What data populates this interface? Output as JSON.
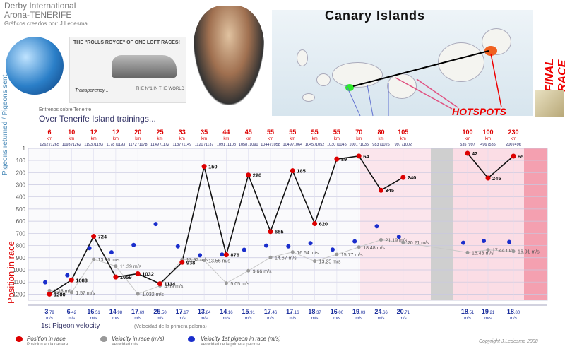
{
  "header": {
    "line1": "Derby International",
    "line2": "Arona-TENERIFE",
    "line3": "Gráficos creados por: J.Ledesma"
  },
  "ad": {
    "tagline": "THE \"ROLLS ROYCE\" OF ONE LOFT RACES!",
    "transparency": "Transparency...",
    "n1": "THE N°1 IN THE WORLD"
  },
  "map": {
    "title": "Canary Islands",
    "hotspots": "HOTSPOTS",
    "final_race": "FINAL RACE"
  },
  "trainings": {
    "sub": "Entrenos sobre Tenerife",
    "title": "Over Tenerife Island trainings..."
  },
  "axis": {
    "left_label": "Pigeons returned / Pigeons sent",
    "position_label": "Position in race",
    "velocity_label": "1st Pigeon velocity",
    "velocity_sub": "(Velocidad de la primera paloma)"
  },
  "legend": {
    "pos": "Position in race",
    "pos_sub": "Posicion en la carrera",
    "vel": "Velocity in race (m/s)",
    "vel_sub": "Velocidad m/s",
    "vel1": "Velocity 1st pigeon in race (m/s)",
    "vel1_sub": "Velocidad de la primera paloma"
  },
  "copyright": "Copyright J.Ledesma 2008",
  "colors": {
    "position": "#dd0000",
    "velocity": "#999999",
    "first_velocity": "#1a2ecc",
    "final_band": "#fbd0dc"
  },
  "chart_data": {
    "type": "line",
    "y_label": "Position in race",
    "y_ticks": [
      1,
      100,
      200,
      300,
      400,
      500,
      600,
      700,
      800,
      900,
      1000,
      1100,
      1200
    ],
    "ylim": [
      1,
      1250
    ],
    "y_inverted": true,
    "races": [
      {
        "km": "6",
        "ratio": "1262 /1265",
        "pos": 1200,
        "vel": "2.25",
        "v1": "3.79"
      },
      {
        "km": "10",
        "ratio": "1193 /1262",
        "pos": 1083,
        "vel": "1.57",
        "v1": "6.42"
      },
      {
        "km": "12",
        "ratio": "1193 /1193",
        "pos": 724,
        "vel": "13.96",
        "v1": "16.51"
      },
      {
        "km": "12",
        "ratio": "1178 /1193",
        "pos": 1059,
        "vel": "11.39",
        "v1": "14.98"
      },
      {
        "km": "20",
        "ratio": "1172 /1178",
        "pos": 1032,
        "vel": "1.032",
        "v1": "17.69"
      },
      {
        "km": "25",
        "ratio": "1149 /1172",
        "pos": 1114,
        "vel": "4.09",
        "v1": "25.50"
      },
      {
        "km": "33",
        "ratio": "1137 /1149",
        "pos": 938,
        "vel": "13.92",
        "v1": "17.17"
      },
      {
        "km": "35",
        "ratio": "1120 /1137",
        "pos": 150,
        "vel": "13.56",
        "v1": "13.84"
      },
      {
        "km": "44",
        "ratio": "1091 /1108",
        "pos": 876,
        "vel": "5.05",
        "v1": "14.16"
      },
      {
        "km": "45",
        "ratio": "1058 /1091",
        "pos": 220,
        "vel": "9.66",
        "v1": "15.91"
      },
      {
        "km": "55",
        "ratio": "1044 /1058",
        "pos": 685,
        "vel": "14.67",
        "v1": "17.46"
      },
      {
        "km": "55",
        "ratio": "1049 /1064",
        "pos": 185,
        "vel": "16.64",
        "v1": "17.16"
      },
      {
        "km": "55",
        "ratio": "1045 /1052",
        "pos": 620,
        "vel": "13.25",
        "v1": "18.37"
      },
      {
        "km": "55",
        "ratio": "1030 /1045",
        "pos": 89,
        "vel": "15.77",
        "v1": "16.00"
      },
      {
        "km": "70",
        "ratio": "1001 /1035",
        "pos": 64,
        "vel": "18.48",
        "v1": "19.03"
      },
      {
        "km": "80",
        "ratio": "983 /1026",
        "pos": 345,
        "vel": "21.19",
        "v1": "24.66"
      },
      {
        "km": "105",
        "ratio": "997 /1002",
        "pos": 240,
        "vel": "20.21",
        "v1": "20.71"
      },
      {
        "km": "100",
        "ratio": "535 /997",
        "pos": 42,
        "vel": "16.48",
        "v1": "18.51"
      },
      {
        "km": "100",
        "ratio": "496 /535",
        "pos": 245,
        "vel": "17.44",
        "v1": "19.21"
      },
      {
        "km": "230",
        "ratio": "200 /496",
        "pos": 65,
        "vel": "16.91",
        "v1": "18.80"
      }
    ]
  }
}
